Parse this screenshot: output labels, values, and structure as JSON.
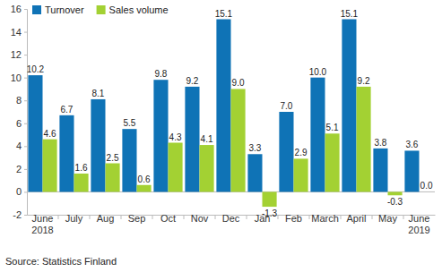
{
  "chart_data": {
    "type": "bar",
    "categories": [
      "June\n2018",
      "July",
      "Aug",
      "Sep",
      "Oct",
      "Nov",
      "Dec",
      "Jan",
      "Feb",
      "March",
      "April",
      "May",
      "June\n2019"
    ],
    "series": [
      {
        "name": "Turnover",
        "color": "#0f73b6",
        "values": [
          10.2,
          6.7,
          8.1,
          5.5,
          9.8,
          9.2,
          15.1,
          3.3,
          7.0,
          10.0,
          15.1,
          3.8,
          3.6
        ],
        "value_labels": [
          "10.2",
          "6.7",
          "8.1",
          "5.5",
          "9.8",
          "9.2",
          "15.1",
          "3.3",
          "7.0",
          "10.0",
          "15.1",
          "3.8",
          "3.6"
        ]
      },
      {
        "name": "Sales volume",
        "color": "#a3d133",
        "values": [
          4.6,
          1.6,
          2.5,
          0.6,
          4.3,
          4.1,
          9.0,
          -1.3,
          2.9,
          5.1,
          9.2,
          -0.3,
          0.0
        ],
        "value_labels": [
          "4.6",
          "1.6",
          "2.5",
          "0.6",
          "4.3",
          "4.1",
          "9.0",
          "-1.3",
          "2.9",
          "5.1",
          "9.2",
          "-0.3",
          "0.0"
        ]
      }
    ],
    "ylim": [
      -2,
      16
    ],
    "yticks": [
      -2,
      0,
      2,
      4,
      6,
      8,
      10,
      12,
      14,
      16
    ],
    "grid": false,
    "legend": "top-left",
    "data_labels": true,
    "source": "Source: Statistics Finland"
  }
}
